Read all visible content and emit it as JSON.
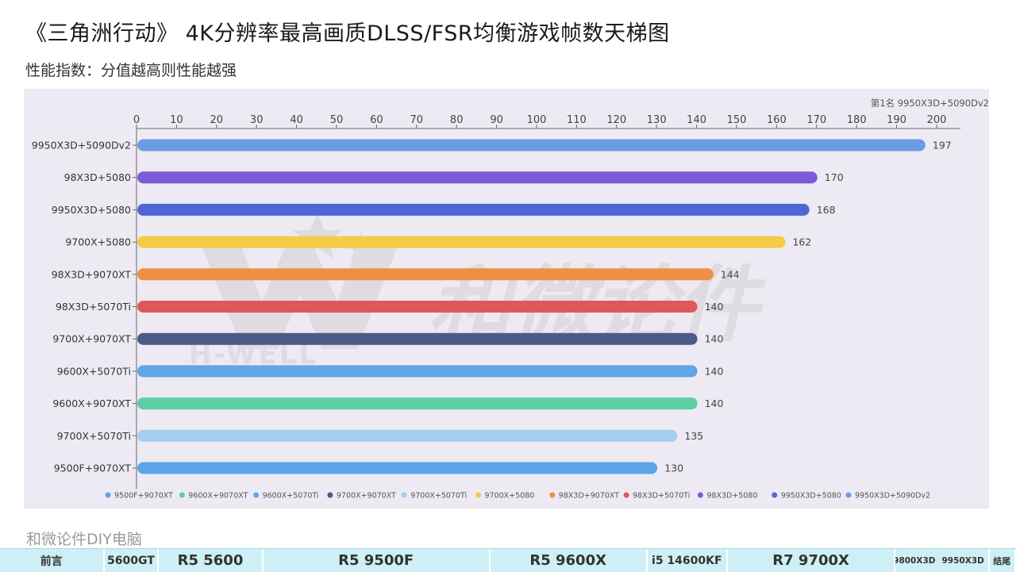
{
  "title": "《三角洲行动》 4K分辨率最高画质DLSS/FSR均衡游戏帧数天梯图",
  "subtitle": "性能指数：分值越高则性能越强",
  "rank_note": "第1名 9950X3D+5090Dv2",
  "footer_brand": "和微论件DIY电脑",
  "nav": {
    "items": [
      {
        "label": "前言"
      },
      {
        "label": "5600GT"
      },
      {
        "label": "R5 5600"
      },
      {
        "label": "R5 9500F"
      },
      {
        "label": "R5 9600X"
      },
      {
        "label": "i5 14600KF"
      },
      {
        "label": "R7 9700X"
      },
      {
        "label": "9800X3D",
        "label2": "9950X3D"
      },
      {
        "label": "结尾"
      }
    ]
  },
  "colors": {
    "panel_bg": "#eeeaf3",
    "nav_bg": "#cfeff6",
    "watermark": "#bdbdbd"
  },
  "watermark": {
    "text": "和微论件",
    "subtext": "H-WELL"
  },
  "chart_data": {
    "type": "bar",
    "orientation": "horizontal",
    "x_axis_position": "top",
    "xlim": [
      0,
      200
    ],
    "xticks": [
      0,
      10,
      20,
      30,
      40,
      50,
      60,
      70,
      80,
      90,
      100,
      110,
      120,
      130,
      140,
      150,
      160,
      170,
      180,
      190,
      200
    ],
    "grid": false,
    "legend_position": "bottom",
    "categories": [
      "9950X3D+5090Dv2",
      "98X3D+5080",
      "9950X3D+5080",
      "9700X+5080",
      "98X3D+9070XT",
      "98X3D+5070Ti",
      "9700X+9070XT",
      "9600X+5070Ti",
      "9600X+9070XT",
      "9700X+5070Ti",
      "9500F+9070XT"
    ],
    "values": [
      197,
      170,
      168,
      162,
      144,
      140,
      140,
      140,
      140,
      135,
      130
    ],
    "bar_colors": [
      "#6d9be1",
      "#7c5bd7",
      "#4f67d6",
      "#f3cc46",
      "#ee8f45",
      "#e0575a",
      "#4b5a86",
      "#5ea6e8",
      "#5dcea3",
      "#a5cfed",
      "#5ba6e8"
    ],
    "legend": [
      {
        "name": "9500F+9070XT",
        "color": "#5ba6e8"
      },
      {
        "name": "9600X+9070XT",
        "color": "#5dcea3"
      },
      {
        "name": "9600X+5070Ti",
        "color": "#5ea6e8"
      },
      {
        "name": "9700X+9070XT",
        "color": "#4b5a86"
      },
      {
        "name": "9700X+5070Ti",
        "color": "#a5cfed"
      },
      {
        "name": "9700X+5080",
        "color": "#f3cc46"
      },
      {
        "name": "98X3D+9070XT",
        "color": "#ee8f45"
      },
      {
        "name": "98X3D+5070Ti",
        "color": "#e0575a"
      },
      {
        "name": "98X3D+5080",
        "color": "#7c5bd7"
      },
      {
        "name": "9950X3D+5080",
        "color": "#4f67d6"
      },
      {
        "name": "9950X3D+5090Dv2",
        "color": "#6d9be1"
      }
    ]
  }
}
